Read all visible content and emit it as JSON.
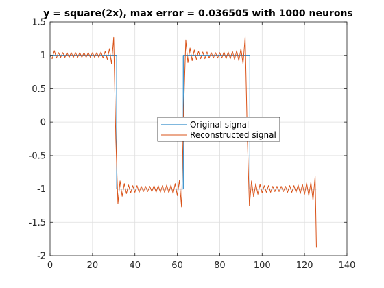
{
  "chart_data": {
    "type": "line",
    "title": "y = square(2x), max error = 0.036505 with 1000 neurons",
    "xlabel": "",
    "ylabel": "",
    "xlim": [
      0,
      140
    ],
    "ylim": [
      -2,
      1.5
    ],
    "xticks": [
      0,
      20,
      40,
      60,
      80,
      100,
      120,
      140
    ],
    "yticks": [
      -2,
      -1.5,
      -1,
      -0.5,
      0,
      0.5,
      1,
      1.5
    ],
    "grid": true,
    "legend_placement": "center",
    "series": [
      {
        "name": "Original signal",
        "color": "#0072BD",
        "x": [
          0,
          31.4,
          31.4,
          62.8,
          62.8,
          94.2,
          94.2,
          125.6
        ],
        "y": [
          1,
          1,
          -1,
          -1,
          1,
          1,
          -1,
          -1
        ]
      },
      {
        "name": "Reconstructed signal",
        "color": "#D95319",
        "x": [
          0,
          1,
          2,
          3,
          4,
          5,
          6,
          7,
          8,
          9,
          10,
          11,
          12,
          13,
          14,
          15,
          16,
          17,
          18,
          19,
          20,
          21,
          22,
          23,
          24,
          25,
          26,
          27,
          28,
          29,
          30,
          31,
          32,
          33,
          34,
          35,
          36,
          37,
          38,
          39,
          40,
          41,
          42,
          43,
          44,
          45,
          46,
          47,
          48,
          49,
          50,
          51,
          52,
          53,
          54,
          55,
          56,
          57,
          58,
          59,
          60,
          61,
          62,
          63,
          64,
          65,
          66,
          67,
          68,
          69,
          70,
          71,
          72,
          73,
          74,
          75,
          76,
          77,
          78,
          79,
          80,
          81,
          82,
          83,
          84,
          85,
          86,
          87,
          88,
          89,
          90,
          91,
          92,
          93,
          94,
          95,
          96,
          97,
          98,
          99,
          100,
          101,
          102,
          103,
          104,
          105,
          106,
          107,
          108,
          109,
          110,
          111,
          112,
          113,
          114,
          115,
          116,
          117,
          118,
          119,
          120,
          121,
          122,
          123,
          124,
          125,
          125.6
        ],
        "y": [
          1.0,
          0.95,
          1.07,
          0.96,
          1.04,
          0.97,
          1.04,
          0.97,
          1.04,
          0.97,
          1.04,
          0.97,
          1.04,
          0.97,
          1.04,
          0.97,
          1.04,
          0.97,
          1.04,
          0.97,
          1.04,
          0.97,
          1.04,
          0.97,
          1.05,
          0.96,
          1.06,
          0.94,
          1.1,
          0.87,
          1.27,
          -0.25,
          -1.22,
          -0.88,
          -1.11,
          -0.92,
          -1.07,
          -0.94,
          -1.06,
          -0.95,
          -1.05,
          -0.95,
          -1.05,
          -0.96,
          -1.04,
          -0.96,
          -1.04,
          -0.96,
          -1.04,
          -0.95,
          -1.05,
          -0.95,
          -1.05,
          -0.95,
          -1.05,
          -0.94,
          -1.06,
          -0.94,
          -1.07,
          -0.92,
          -1.1,
          -0.87,
          -1.27,
          0.2,
          1.23,
          0.89,
          1.11,
          0.92,
          1.08,
          0.94,
          1.06,
          0.95,
          1.05,
          0.95,
          1.05,
          0.96,
          1.04,
          0.96,
          1.04,
          0.96,
          1.04,
          0.96,
          1.05,
          0.95,
          1.05,
          0.95,
          1.06,
          0.94,
          1.07,
          0.92,
          1.1,
          0.87,
          1.28,
          -0.2,
          -1.25,
          -0.88,
          -1.12,
          -0.92,
          -1.08,
          -0.93,
          -1.06,
          -0.95,
          -1.05,
          -0.95,
          -1.05,
          -0.96,
          -1.04,
          -0.96,
          -1.04,
          -0.96,
          -1.04,
          -0.96,
          -1.05,
          -0.95,
          -1.05,
          -0.95,
          -1.05,
          -0.94,
          -1.07,
          -0.93,
          -1.08,
          -0.91,
          -1.1,
          -0.9,
          -1.17,
          -0.81,
          -1.87
        ]
      }
    ]
  }
}
